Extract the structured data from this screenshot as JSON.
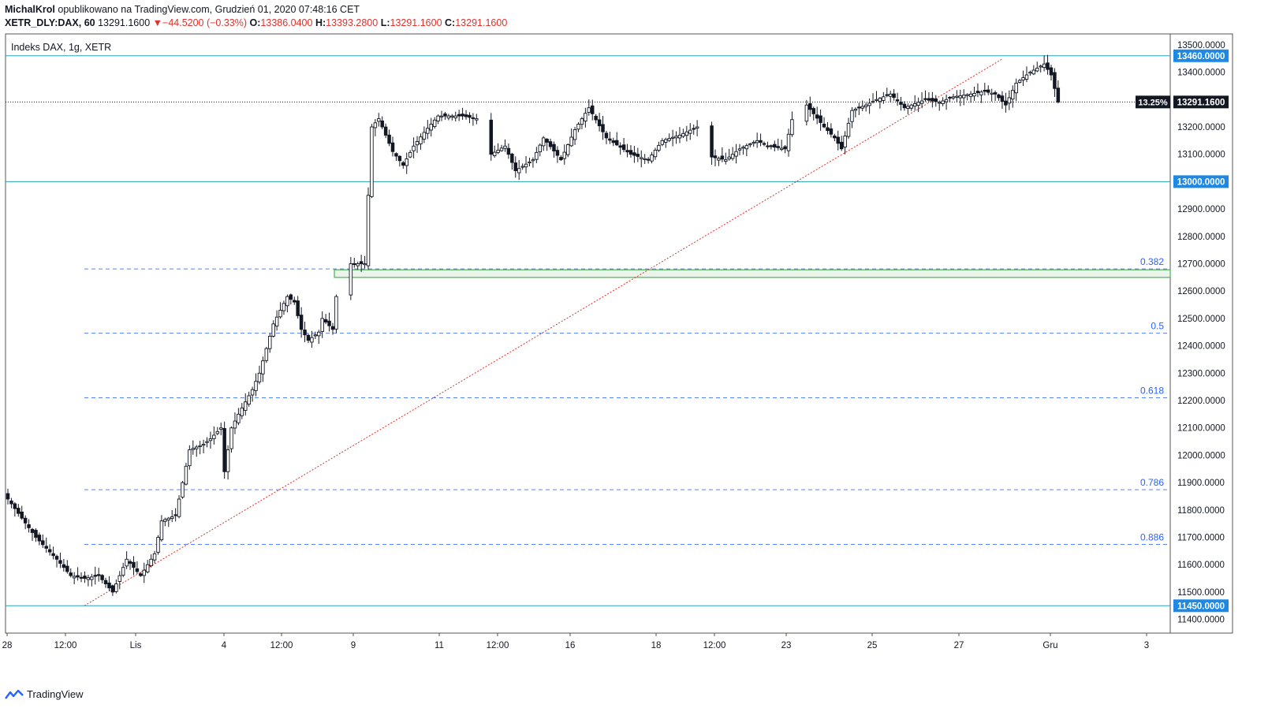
{
  "header": {
    "author": "MichalKrol",
    "published_text": "opublikowano na TradingView.com, Grudzień 01, 2020 07:48:16 CET",
    "symbol": "XETR_DLY:DAX, 60",
    "last": "13291.1600",
    "change": "−44.5200 (−0.33%)",
    "o_label": "O:",
    "o_value": "13386.0400",
    "h_label": "H:",
    "h_value": "13393.2800",
    "l_label": "L:",
    "l_value": "13291.1600",
    "c_label": "C:",
    "c_value": "13291.1600"
  },
  "chart_data": {
    "type": "candlestick",
    "title": "Indeks DAX, 1g, XETR",
    "ylim": [
      11350,
      13540
    ],
    "y_ticks": [
      13500,
      13400,
      13300,
      13200,
      13100,
      13000,
      12900,
      12800,
      12700,
      12600,
      12500,
      12400,
      12300,
      12200,
      12100,
      12000,
      11900,
      11800,
      11700,
      11600,
      11500,
      11400
    ],
    "x_ticks": [
      "28",
      "12:00",
      "Lis",
      "4",
      "12:00",
      "9",
      "11",
      "12:00",
      "16",
      "18",
      "12:00",
      "23",
      "25",
      "27",
      "Gru",
      "3"
    ],
    "price_levels": [
      {
        "value": 13460,
        "label": "13460.0000",
        "color": "#26a3bf"
      },
      {
        "value": 13000,
        "label": "13000.0000",
        "color": "#26a3bf"
      },
      {
        "value": 11450,
        "label": "11450.0000",
        "color": "#26a3bf"
      }
    ],
    "fib_levels": [
      {
        "ratio": "0.382",
        "value": 12681
      },
      {
        "ratio": "0.5",
        "value": 12446
      },
      {
        "ratio": "0.618",
        "value": 12210
      },
      {
        "ratio": "0.786",
        "value": 11874
      },
      {
        "ratio": "0.886",
        "value": 11674
      }
    ],
    "support_zone": {
      "from": 12650,
      "to": 12678
    },
    "trendline": {
      "from_value": 11450,
      "to_value": 13450
    },
    "current_price": {
      "value": 13291.16,
      "label": "13291.1600",
      "pct": "13.25%"
    },
    "path_anchors": [
      [
        0,
        11840
      ],
      [
        8,
        11700
      ],
      [
        14,
        11620
      ],
      [
        18,
        11560
      ],
      [
        22,
        11550
      ],
      [
        26,
        11560
      ],
      [
        30,
        11500
      ],
      [
        34,
        11620
      ],
      [
        38,
        11560
      ],
      [
        42,
        11640
      ],
      [
        44,
        11760
      ],
      [
        48,
        11780
      ],
      [
        50,
        11900
      ],
      [
        52,
        12020
      ],
      [
        56,
        12040
      ],
      [
        58,
        12060
      ],
      [
        61,
        12100
      ],
      [
        62,
        11940
      ],
      [
        64,
        12100
      ],
      [
        66,
        12150
      ],
      [
        70,
        12240
      ],
      [
        72,
        12300
      ],
      [
        76,
        12480
      ],
      [
        80,
        12580
      ],
      [
        82,
        12560
      ],
      [
        84,
        12460
      ],
      [
        86,
        12420
      ],
      [
        89,
        12450
      ],
      [
        90,
        12500
      ],
      [
        93,
        12460
      ],
      [
        95,
        12700
      ],
      [
        99,
        12700
      ],
      [
        101,
        13200
      ],
      [
        103,
        13230
      ],
      [
        107,
        13110
      ],
      [
        110,
        13060
      ],
      [
        113,
        13130
      ],
      [
        116,
        13180
      ],
      [
        120,
        13240
      ],
      [
        127,
        13240
      ],
      [
        131,
        13230
      ],
      [
        132,
        13100
      ],
      [
        136,
        13130
      ],
      [
        139,
        13040
      ],
      [
        144,
        13080
      ],
      [
        147,
        13160
      ],
      [
        152,
        13080
      ],
      [
        156,
        13190
      ],
      [
        160,
        13270
      ],
      [
        165,
        13160
      ],
      [
        172,
        13100
      ],
      [
        177,
        13080
      ],
      [
        181,
        13150
      ],
      [
        186,
        13170
      ],
      [
        191,
        13200
      ],
      [
        192,
        13090
      ],
      [
        196,
        13080
      ],
      [
        200,
        13120
      ],
      [
        205,
        13150
      ],
      [
        208,
        13130
      ],
      [
        213,
        13120
      ],
      [
        216,
        13280
      ],
      [
        221,
        13200
      ],
      [
        224,
        13160
      ],
      [
        226,
        13120
      ],
      [
        229,
        13260
      ],
      [
        233,
        13280
      ],
      [
        236,
        13300
      ],
      [
        240,
        13320
      ],
      [
        244,
        13270
      ],
      [
        250,
        13300
      ],
      [
        254,
        13290
      ],
      [
        258,
        13310
      ],
      [
        263,
        13320
      ],
      [
        267,
        13330
      ],
      [
        270,
        13320
      ],
      [
        273,
        13280
      ],
      [
        276,
        13360
      ],
      [
        280,
        13400
      ],
      [
        284,
        13430
      ],
      [
        286,
        13390
      ],
      [
        288,
        13291
      ]
    ]
  },
  "branding": {
    "name": "TradingView"
  }
}
